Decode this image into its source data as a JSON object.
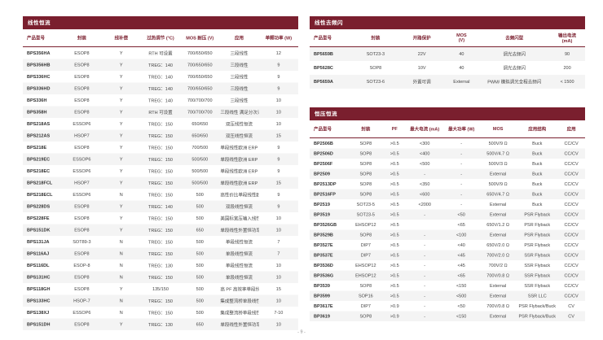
{
  "colors": {
    "accent": "#7a1f2e",
    "stripe": "#f4f4f4"
  },
  "footer": {
    "page_number": "- 9 -"
  },
  "tables": {
    "linear_cc": {
      "title": "线性恒流",
      "columns": [
        "产品型号",
        "封装",
        "线补偿",
        "过热调节 (°C)",
        "MOS 耐压 (V)",
        "应用",
        "单颗功率 (W)"
      ],
      "rows": [
        [
          "BPS356HA",
          "ESOP8",
          "Y",
          "RTH 可设置",
          "700/650/650",
          "三段线性",
          "12"
        ],
        [
          "BPS356HB",
          "ESOP8",
          "Y",
          "TREG：140",
          "700/650/650",
          "三段线性",
          "9"
        ],
        [
          "BPS336HC",
          "ESOP8",
          "Y",
          "TREG：140",
          "700/650/650",
          "三段线性",
          "9"
        ],
        [
          "BPS336HD",
          "ESOP8",
          "Y",
          "TREG：140",
          "700/650/650",
          "三段线性",
          "9"
        ],
        [
          "BPS336H",
          "ESOP8",
          "Y",
          "TREG：140",
          "700/700/700",
          "三段线性",
          "10"
        ],
        [
          "BPS358H",
          "ESOP8",
          "Y",
          "RTH 可设置",
          "700/700/700",
          "三段线性 满足分次谐波要求",
          "10"
        ],
        [
          "BPS218AS",
          "ESSOP6",
          "Y",
          "TREG：150",
          "650/650",
          "双压线性恒流",
          "10"
        ],
        [
          "BPS212AS",
          "HSOP7",
          "Y",
          "TREG：150",
          "650/650",
          "双压线性恒流",
          "15"
        ],
        [
          "BPS218E",
          "ESOP8",
          "Y",
          "TREG：150",
          "700/500",
          "单段线性欧洲 ERP 外置恒功率补偿",
          "9"
        ],
        [
          "BPS219EC",
          "ESSOP6",
          "Y",
          "TREG：150",
          "500/500",
          "单段线性欧洲 ERP 内恒功率补偿",
          "9"
        ],
        [
          "BPS218EC",
          "ESSOP6",
          "Y",
          "TREG：150",
          "500/500",
          "单段线性欧洲 ERP 内恒功率补偿",
          "9"
        ],
        [
          "BPS218FCL",
          "HSOP7",
          "Y",
          "TREG：150",
          "500/500",
          "单段线性欧洲 ERP 内恒功率补偿",
          "15"
        ],
        [
          "BPS218ECL",
          "ESSOP6",
          "N",
          "TREG：150",
          "500",
          "高性价比单段线性欧洲 ERP",
          "9"
        ],
        [
          "BPS228DS",
          "ESOP8",
          "Y",
          "TREG：140",
          "500",
          "双段线性恒流",
          "9"
        ],
        [
          "BPS228FE",
          "ESOP8",
          "Y",
          "TREG：150",
          "500",
          "美国标宽压输入线性恒流",
          "10"
        ],
        [
          "BPS151DK",
          "ESOP8",
          "Y",
          "TREG：150",
          "650",
          "单段线性外置恒功率补偿",
          "10"
        ],
        [
          "BPS131JA",
          "SOT89-3",
          "N",
          "TREG：150",
          "500",
          "单段线性恒流",
          "7"
        ],
        [
          "BPS116AJ",
          "ESOP8",
          "N",
          "TREG：150",
          "500",
          "单段线性恒流",
          "7"
        ],
        [
          "BPS116DL",
          "ESOP-8",
          "N",
          "TREG：130",
          "500",
          "单段线性恒流",
          "10"
        ],
        [
          "BPS131HC",
          "ESOP8",
          "N",
          "TREG：150",
          "500",
          "单段线性恒流",
          "10"
        ],
        [
          "BPS118GH",
          "ESOP8",
          "Y",
          "135/150",
          "500",
          "高 PF 高效率单段线性恒流",
          "15"
        ],
        [
          "BPS133HC",
          "HSOP-7",
          "N",
          "TREG：150",
          "500",
          "集成整流桥单段线性恒流",
          "10"
        ],
        [
          "BPS138XJ",
          "ESSOP6",
          "N",
          "TREG：150",
          "500",
          "集成整流桥单段线性恒流",
          "7-10"
        ],
        [
          "BPS151DH",
          "ESOP8",
          "Y",
          "TREG：130",
          "650",
          "单段线性外置恒功率补偿",
          "10"
        ]
      ]
    },
    "linear_deflicker": {
      "title": "线性去频闪",
      "columns": [
        "产品型号",
        "封装",
        "开路保护",
        "MOS\n(V)",
        "去频闪型",
        "输出电流\n(mA)"
      ],
      "rows": [
        [
          "BP5659B",
          "SOT23-3",
          "22V",
          "40",
          "调光去频闪",
          "90"
        ],
        [
          "BP5628C",
          "SOP8",
          "10V",
          "40",
          "调光去频闪",
          "200"
        ],
        [
          "BP5659A",
          "SOT23-6",
          "外置可调",
          "External",
          "PWM/ 模拟调光全程去频闪",
          "< 1500"
        ]
      ]
    },
    "cv_cc": {
      "title": "恒压恒流",
      "columns": [
        "产品型号",
        "封装",
        "PF",
        "最大电流 (mA)",
        "最大功率 (W)",
        "MOS",
        "应用结构",
        "应用"
      ],
      "rows": [
        [
          "BP2506B",
          "SOP8",
          ">0.5",
          "<300",
          "-",
          "500V/9 Ω",
          "Buck",
          "CC/CV"
        ],
        [
          "BP2506D",
          "SOP8",
          ">0.5",
          "<400",
          "-",
          "500V/4.7 Ω",
          "Buck",
          "CC/CV"
        ],
        [
          "BP2506F",
          "SOP8",
          ">0.5",
          "<500",
          "-",
          "500V/3 Ω",
          "Buck",
          "CC/CV"
        ],
        [
          "BP2509",
          "SOP8",
          ">0.5",
          "-",
          "-",
          "External",
          "Buck",
          "CC/CV"
        ],
        [
          "BP2513DP",
          "SOP8",
          ">0.5",
          "<350",
          "-",
          "500V/9 Ω",
          "Buck",
          "CC/CV"
        ],
        [
          "BP2516FP",
          "SOP8",
          ">0.5",
          "<600",
          "-",
          "650V/4.7 Ω",
          "Buck",
          "CC/CV"
        ],
        [
          "BP2519",
          "SOT23-5",
          ">0.5",
          "<2000",
          "-",
          "External",
          "Buck",
          "CC/CV"
        ],
        [
          "BP3519",
          "SOT23-5",
          ">0.5",
          "-",
          "<50",
          "External",
          "PSR Flyback",
          "CC/CV"
        ],
        [
          "BP3526GB",
          "EHSOP12",
          ">0.5",
          "",
          "<65",
          "650V/1.2 Ω",
          "PSR Flyback",
          "CC/CV"
        ],
        [
          "BP3529B",
          "SOP8",
          ">0.5",
          "-",
          "<100",
          "External",
          "PSR Flyback",
          "CC/CV"
        ],
        [
          "BP3527E",
          "DIP7",
          ">0.5",
          "-",
          "<40",
          "650V/2.0 Ω",
          "PSR Flyback",
          "CC/CV"
        ],
        [
          "BP3537E",
          "DIP7",
          ">0.5",
          "-",
          "<45",
          "700V/2.0 Ω",
          "SSR Flyback",
          "CC/CV"
        ],
        [
          "BP3536D",
          "EHSOP12",
          ">0.5",
          "-",
          "<45",
          "700V/2 Ω",
          "SSR Flyback",
          "CC/CV"
        ],
        [
          "BP3536G",
          "EHSOP12",
          ">0.5",
          "-",
          "<65",
          "700V/0.8 Ω",
          "SSR Flyback",
          "CC/CV"
        ],
        [
          "BP3539",
          "SOP8",
          ">0.5",
          "-",
          "<150",
          "External",
          "SSR Flyback",
          "CC/CV"
        ],
        [
          "BP3599",
          "SOP16",
          ">0.5",
          "-",
          "<500",
          "External",
          "SSR LLC",
          "CC/CV"
        ],
        [
          "BP3617E",
          "DIP7",
          ">0.9",
          "-",
          "<50",
          "700V/0.8 Ω",
          "PSR Flyback/Buck",
          "CV"
        ],
        [
          "BP3619",
          "SOP8",
          ">0.9",
          "-",
          "<150",
          "External",
          "PSR Flyback/Buck",
          "CV"
        ]
      ]
    }
  }
}
